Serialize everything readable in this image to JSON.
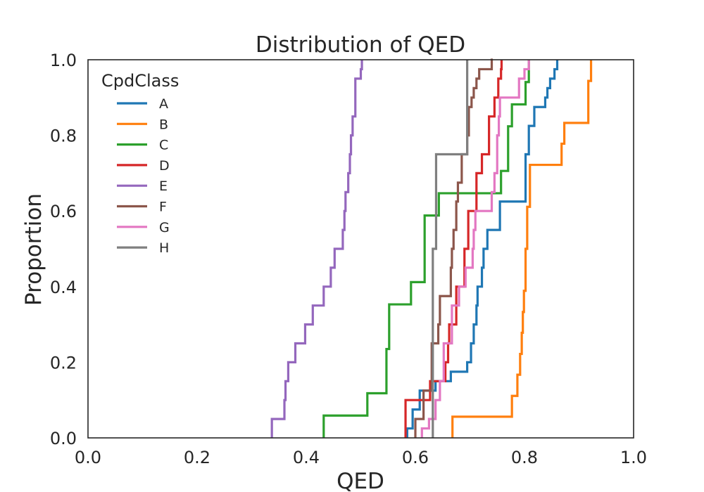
{
  "chart_data": {
    "type": "ecdf",
    "title": "Distribution of QED",
    "xlabel": "QED",
    "ylabel": "Proportion",
    "xlim": [
      0.0,
      1.0
    ],
    "ylim": [
      0.0,
      1.0
    ],
    "xticks": [
      "0.0",
      "0.2",
      "0.4",
      "0.6",
      "0.8",
      "1.0"
    ],
    "yticks": [
      "0.0",
      "0.2",
      "0.4",
      "0.6",
      "0.8",
      "1.0"
    ],
    "grid": false,
    "legend": {
      "title": "CpdClass",
      "position": "top-left"
    },
    "series": [
      {
        "name": "A",
        "color": "#1f77b4",
        "x": [
          0.585,
          0.595,
          0.608,
          0.637,
          0.665,
          0.695,
          0.702,
          0.707,
          0.712,
          0.714,
          0.722,
          0.725,
          0.732,
          0.755,
          0.802,
          0.808,
          0.818,
          0.838,
          0.842,
          0.847,
          0.855,
          0.86
        ],
        "y": [
          0.025,
          0.075,
          0.125,
          0.15,
          0.175,
          0.2,
          0.25,
          0.3,
          0.35,
          0.4,
          0.45,
          0.5,
          0.55,
          0.625,
          0.75,
          0.825,
          0.875,
          0.9,
          0.925,
          0.95,
          0.975,
          1.0
        ]
      },
      {
        "name": "B",
        "color": "#ff7f0e",
        "x": [
          0.668,
          0.777,
          0.787,
          0.792,
          0.795,
          0.797,
          0.799,
          0.802,
          0.805,
          0.81,
          0.868,
          0.873,
          0.917,
          0.922
        ],
        "y": [
          0.056,
          0.111,
          0.167,
          0.222,
          0.278,
          0.333,
          0.389,
          0.5,
          0.611,
          0.722,
          0.778,
          0.833,
          0.944,
          1.0
        ]
      },
      {
        "name": "C",
        "color": "#2ca02c",
        "x": [
          0.432,
          0.512,
          0.547,
          0.552,
          0.592,
          0.617,
          0.643,
          0.653,
          0.757,
          0.77,
          0.777,
          0.802,
          0.808
        ],
        "y": [
          0.059,
          0.118,
          0.235,
          0.353,
          0.412,
          0.588,
          0.647,
          0.647,
          0.706,
          0.824,
          0.882,
          0.941,
          1.0
        ]
      },
      {
        "name": "D",
        "color": "#d62728",
        "x": [
          0.582,
          0.627,
          0.655,
          0.66,
          0.662,
          0.675,
          0.69,
          0.697,
          0.712,
          0.722,
          0.735,
          0.745,
          0.752,
          0.757,
          0.758
        ],
        "y": [
          0.1,
          0.15,
          0.2,
          0.25,
          0.3,
          0.4,
          0.5,
          0.6,
          0.7,
          0.75,
          0.85,
          0.9,
          0.95,
          0.975,
          1.0
        ]
      },
      {
        "name": "E",
        "color": "#9467bd",
        "x": [
          0.337,
          0.36,
          0.362,
          0.367,
          0.38,
          0.398,
          0.412,
          0.432,
          0.445,
          0.452,
          0.467,
          0.47,
          0.472,
          0.477,
          0.48,
          0.482,
          0.485,
          0.49,
          0.5,
          0.502
        ],
        "y": [
          0.05,
          0.1,
          0.15,
          0.2,
          0.25,
          0.3,
          0.35,
          0.4,
          0.45,
          0.5,
          0.55,
          0.6,
          0.65,
          0.7,
          0.75,
          0.8,
          0.85,
          0.95,
          0.975,
          1.0
        ]
      },
      {
        "name": "F",
        "color": "#8c564b",
        "x": [
          0.6,
          0.615,
          0.63,
          0.642,
          0.645,
          0.665,
          0.667,
          0.67,
          0.675,
          0.678,
          0.685,
          0.695,
          0.698,
          0.703,
          0.707,
          0.712,
          0.717,
          0.72,
          0.73,
          0.74,
          0.742
        ],
        "y": [
          0.05,
          0.125,
          0.25,
          0.3,
          0.375,
          0.45,
          0.5,
          0.55,
          0.625,
          0.675,
          0.75,
          0.8,
          0.875,
          0.9,
          0.925,
          0.95,
          0.975,
          0.975,
          0.975,
          1.0,
          1.0
        ]
      },
      {
        "name": "G",
        "color": "#e377c2",
        "x": [
          0.612,
          0.625,
          0.637,
          0.645,
          0.652,
          0.667,
          0.67,
          0.68,
          0.692,
          0.705,
          0.707,
          0.71,
          0.74,
          0.745,
          0.75,
          0.753,
          0.755,
          0.79,
          0.8,
          0.808
        ],
        "y": [
          0.025,
          0.05,
          0.1,
          0.15,
          0.25,
          0.35,
          0.35,
          0.4,
          0.45,
          0.5,
          0.55,
          0.6,
          0.65,
          0.7,
          0.8,
          0.85,
          0.9,
          0.95,
          0.975,
          1.0
        ]
      },
      {
        "name": "H",
        "color": "#7f7f7f",
        "x": [
          0.632,
          0.638,
          0.692,
          0.695
        ],
        "y": [
          0.5,
          0.75,
          0.75,
          1.0
        ]
      }
    ]
  }
}
